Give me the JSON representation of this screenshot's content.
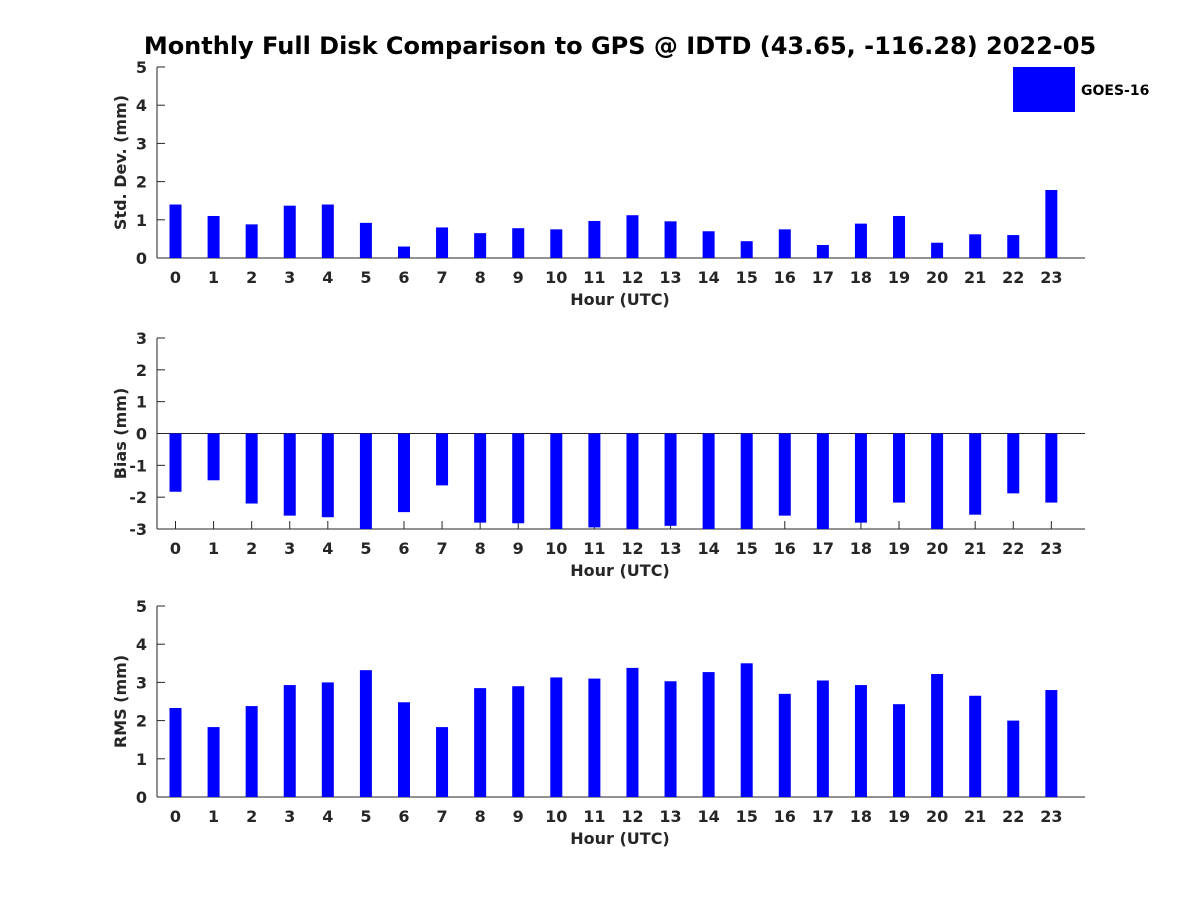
{
  "chart_data": {
    "title": "Monthly Full Disk Comparison to GPS @ IDTD (43.65, -116.28) 2022-05",
    "type": "bar",
    "colors": {
      "bar": "#0000ff"
    },
    "legend": {
      "label": "GOES-16",
      "placement": "top-right"
    },
    "panels": [
      {
        "type": "bar",
        "xlabel": "Hour (UTC)",
        "ylabel": "Std. Dev. (mm)",
        "ylim": [
          0,
          5
        ],
        "yticks": [
          "0",
          "1",
          "2",
          "3",
          "4",
          "5"
        ],
        "categories": [
          "0",
          "1",
          "2",
          "3",
          "4",
          "5",
          "6",
          "7",
          "8",
          "9",
          "10",
          "11",
          "12",
          "13",
          "14",
          "15",
          "16",
          "17",
          "18",
          "19",
          "20",
          "21",
          "22",
          "23"
        ],
        "series": [
          {
            "name": "GOES-16",
            "values": [
              1.4,
              1.1,
              0.88,
              1.37,
              1.4,
              0.92,
              0.3,
              0.8,
              0.65,
              0.78,
              0.75,
              0.97,
              1.12,
              0.96,
              0.7,
              0.44,
              0.75,
              0.34,
              0.9,
              1.1,
              0.4,
              0.62,
              0.6,
              1.78
            ]
          }
        ]
      },
      {
        "type": "bar",
        "xlabel": "Hour (UTC)",
        "ylabel": "Bias (mm)",
        "ylim": [
          -3,
          3
        ],
        "yticks": [
          "-3",
          "-2",
          "-1",
          "0",
          "1",
          "2",
          "3"
        ],
        "categories": [
          "0",
          "1",
          "2",
          "3",
          "4",
          "5",
          "6",
          "7",
          "8",
          "9",
          "10",
          "11",
          "12",
          "13",
          "14",
          "15",
          "16",
          "17",
          "18",
          "19",
          "20",
          "21",
          "22",
          "23"
        ],
        "series": [
          {
            "name": "GOES-16",
            "values": [
              -1.83,
              -1.47,
              -2.2,
              -2.58,
              -2.63,
              -3.0,
              -2.47,
              -1.63,
              -2.8,
              -2.82,
              -3.0,
              -2.95,
              -3.0,
              -2.9,
              -3.0,
              -3.0,
              -2.58,
              -3.0,
              -2.8,
              -2.17,
              -3.0,
              -2.55,
              -1.88,
              -2.17
            ]
          }
        ]
      },
      {
        "type": "bar",
        "xlabel": "Hour (UTC)",
        "ylabel": "RMS (mm)",
        "ylim": [
          0,
          5
        ],
        "yticks": [
          "0",
          "1",
          "2",
          "3",
          "4",
          "5"
        ],
        "categories": [
          "0",
          "1",
          "2",
          "3",
          "4",
          "5",
          "6",
          "7",
          "8",
          "9",
          "10",
          "11",
          "12",
          "13",
          "14",
          "15",
          "16",
          "17",
          "18",
          "19",
          "20",
          "21",
          "22",
          "23"
        ],
        "series": [
          {
            "name": "GOES-16",
            "values": [
              2.33,
              1.83,
              2.38,
              2.93,
              3.0,
              3.32,
              2.48,
              1.83,
              2.85,
              2.9,
              3.13,
              3.1,
              3.38,
              3.03,
              3.27,
              3.5,
              2.7,
              3.05,
              2.93,
              2.43,
              3.22,
              2.65,
              2.0,
              2.8
            ]
          }
        ]
      }
    ]
  }
}
